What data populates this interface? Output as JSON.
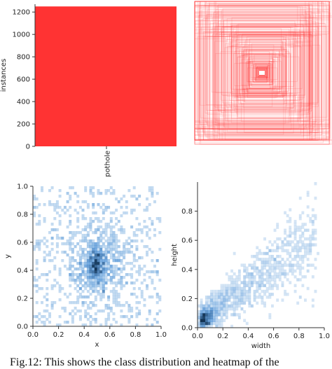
{
  "chart_data": [
    {
      "type": "bar",
      "categories": [
        "pothole"
      ],
      "values": [
        1250
      ],
      "ylabel": "instances",
      "ylim": [
        0,
        1270
      ],
      "yticks": [
        0,
        200,
        400,
        600,
        800,
        1000,
        1200
      ],
      "color": "#ff3333"
    },
    {
      "type": "box-overlay",
      "description_values": {
        "count": 1250
      },
      "color": "#ff3030"
    },
    {
      "type": "heatmap",
      "xlabel": "x",
      "ylabel": "y",
      "xlim": [
        0,
        1
      ],
      "ylim": [
        0,
        1
      ],
      "xticks": [
        0.0,
        0.2,
        0.4,
        0.6,
        0.8,
        1.0
      ],
      "yticks": [
        0.0,
        0.2,
        0.4,
        0.6,
        0.8,
        1.0
      ],
      "center": [
        0.5,
        0.45
      ],
      "color": "#1f77b4"
    },
    {
      "type": "heatmap",
      "xlabel": "width",
      "ylabel": "height",
      "xlim": [
        0,
        1
      ],
      "ylim": [
        0,
        1
      ],
      "xticks": [
        0.0,
        0.2,
        0.4,
        0.6,
        0.8,
        1.0
      ],
      "yticks": [
        0.0,
        0.2,
        0.4,
        0.6,
        0.8
      ],
      "color": "#1f77b4"
    }
  ],
  "caption": "Fig.12: This shows the class distribution and heatmap of the"
}
